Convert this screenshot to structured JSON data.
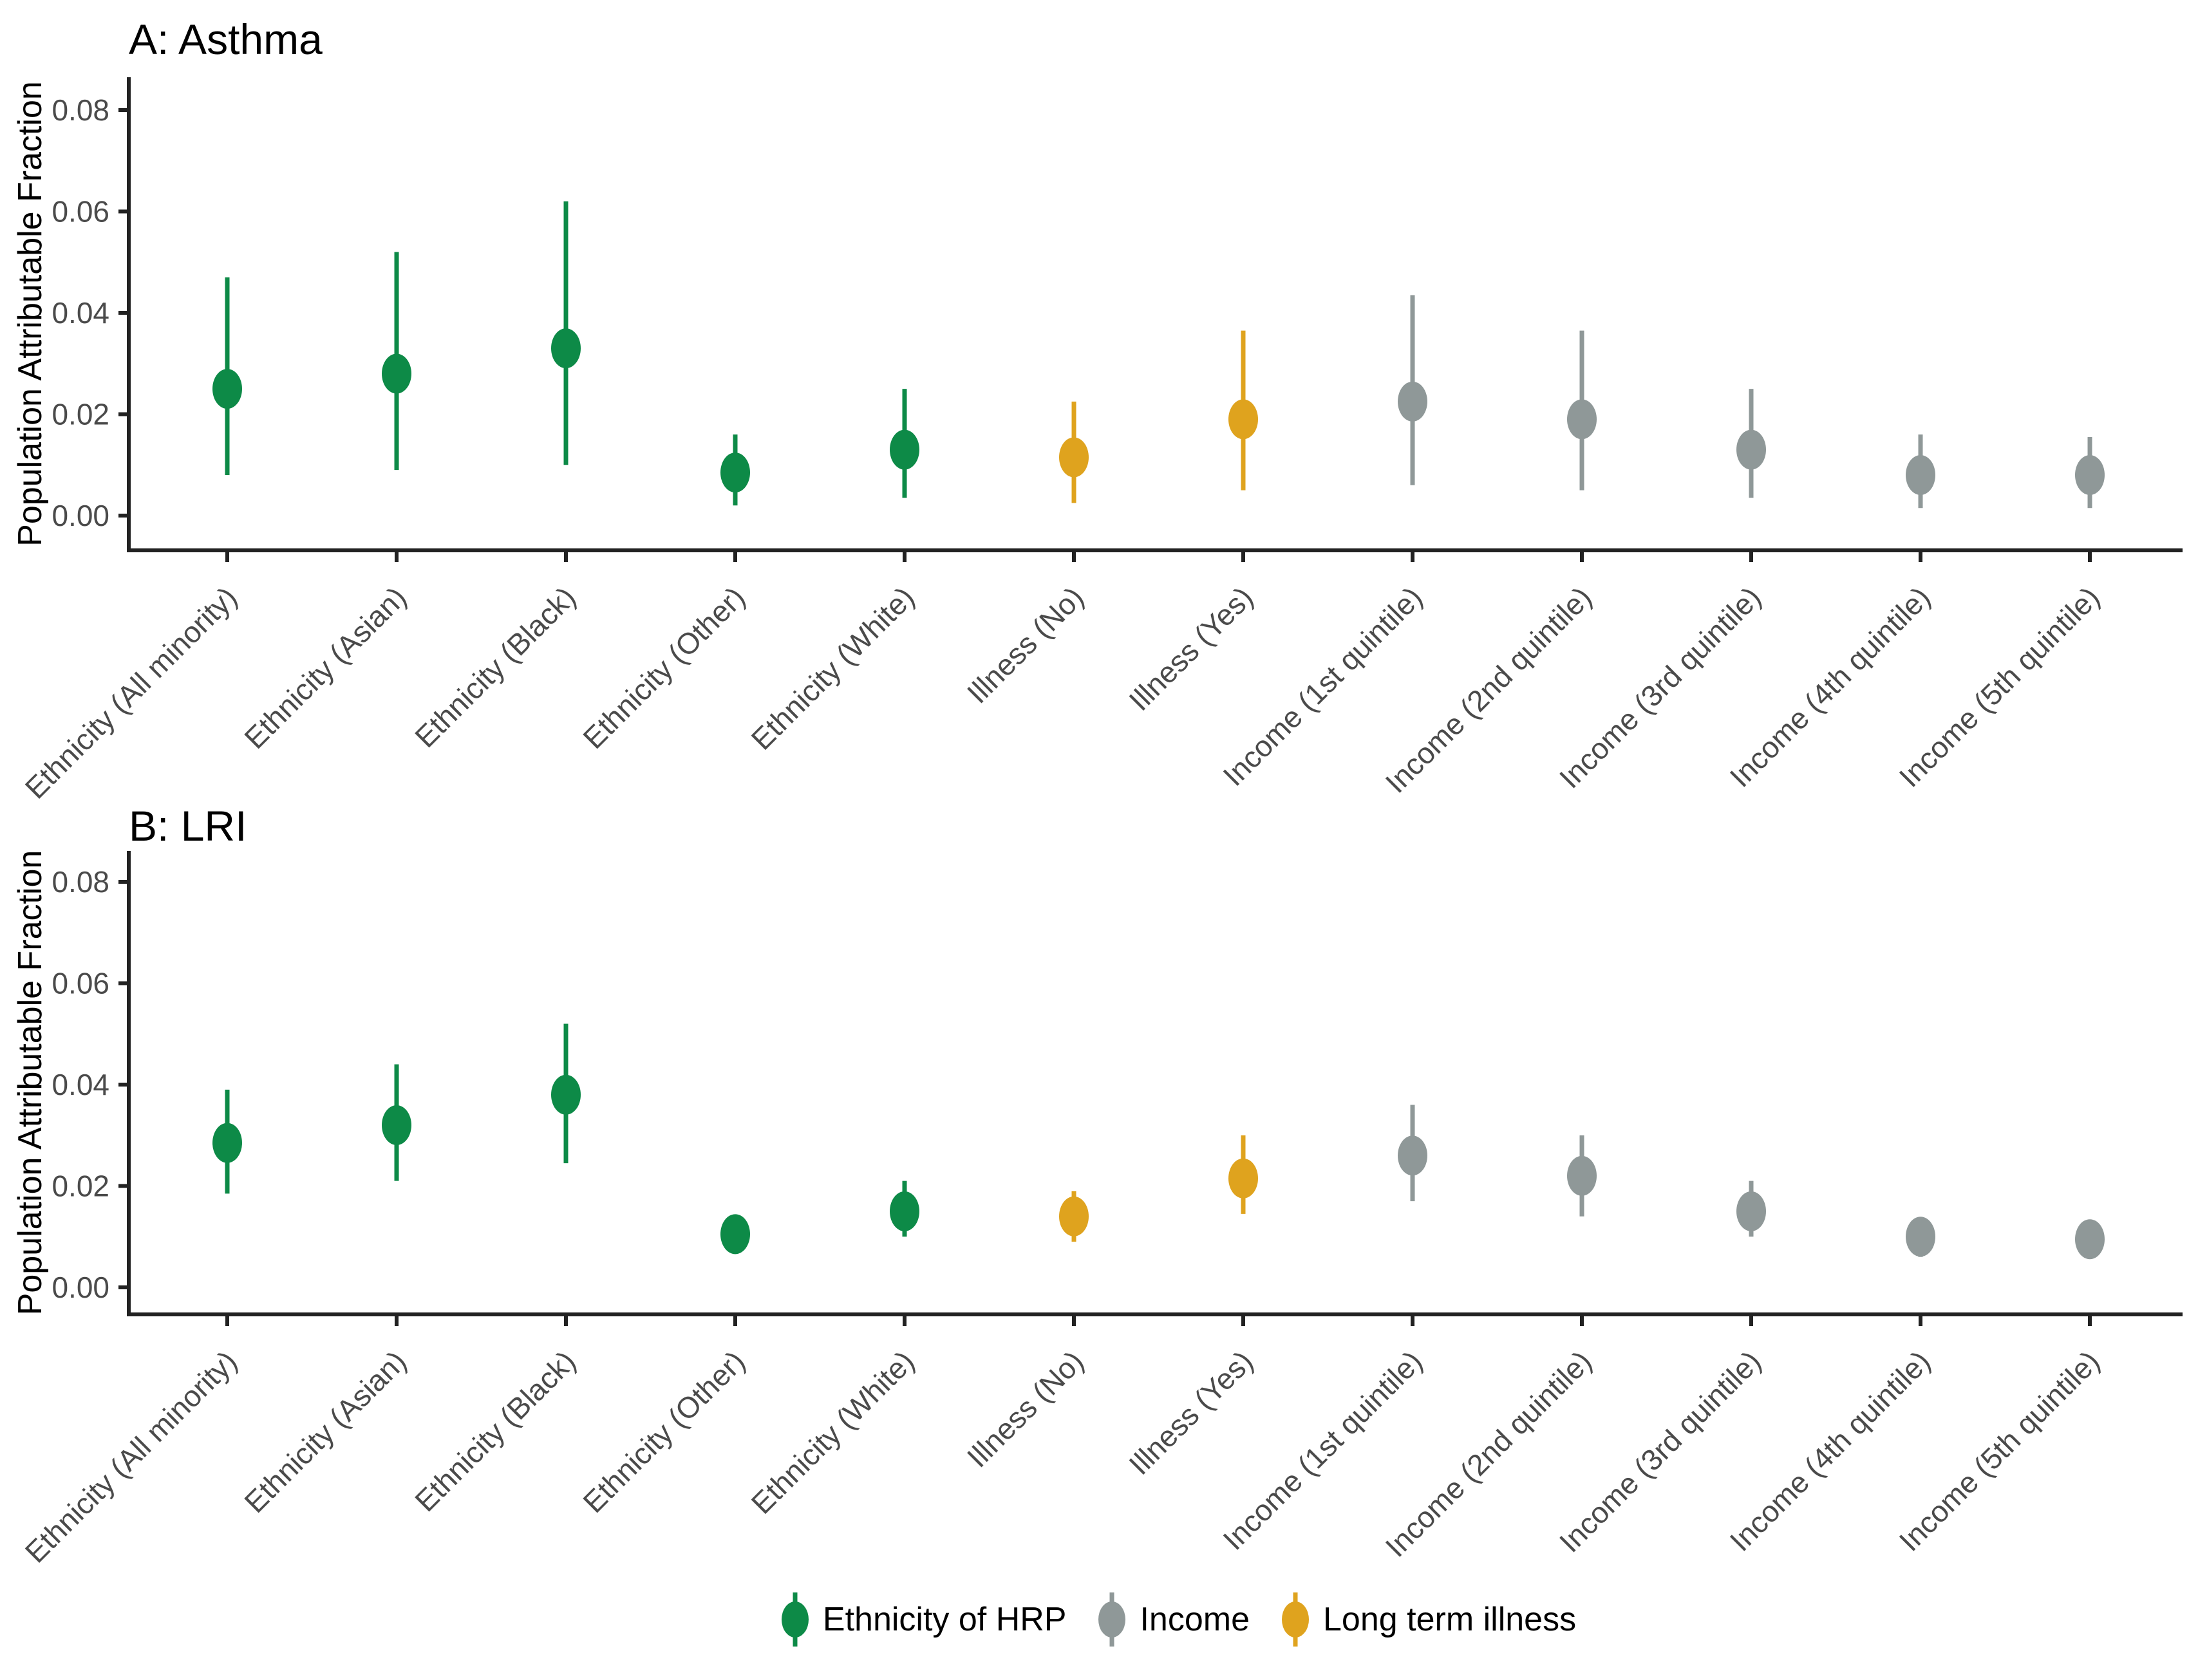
{
  "page": {
    "background": "#ffffff"
  },
  "legend": {
    "items": [
      {
        "label": "Ethnicity of HRP",
        "color": "#0d8a47",
        "group": "ethnicity"
      },
      {
        "label": "Income",
        "color": "#8f9898",
        "group": "income"
      },
      {
        "label": "Long term illness",
        "color": "#dfa31e",
        "group": "illness"
      }
    ]
  },
  "style_colors": {
    "axis": "#222222",
    "tick_text": "#4a4a4a"
  },
  "chart_data": [
    {
      "type": "pointrange",
      "panel": "A",
      "title": "A: Asthma",
      "ylabel": "Population Attributable Fraction",
      "ylim": [
        0,
        0.08
      ],
      "yticks": [
        0,
        0.02,
        0.04,
        0.06,
        0.08
      ],
      "ytick_labels": [
        "0.00",
        "0.02",
        "0.04",
        "0.06",
        "0.08"
      ],
      "grid": "off",
      "legend_position": "bottom",
      "categories": [
        "Ethnicity (All minority)",
        "Ethnicity (Asian)",
        "Ethnicity (Black)",
        "Ethnicity (Other)",
        "Ethnicity (White)",
        "Illness (No)",
        "Illness (Yes)",
        "Income (1st quintile)",
        "Income (2nd quintile)",
        "Income (3rd quintile)",
        "Income (4th quintile)",
        "Income (5th quintile)"
      ],
      "groups": [
        "ethnicity",
        "ethnicity",
        "ethnicity",
        "ethnicity",
        "ethnicity",
        "illness",
        "illness",
        "income",
        "income",
        "income",
        "income",
        "income"
      ],
      "values": [
        0.025,
        0.028,
        0.033,
        0.0085,
        0.013,
        0.0115,
        0.019,
        0.0225,
        0.019,
        0.013,
        0.008,
        0.008
      ],
      "ci_low": [
        0.008,
        0.009,
        0.01,
        0.002,
        0.0035,
        0.0025,
        0.005,
        0.006,
        0.005,
        0.0035,
        0.0015,
        0.0015
      ],
      "ci_high": [
        0.047,
        0.052,
        0.062,
        0.016,
        0.025,
        0.0225,
        0.0365,
        0.0435,
        0.0365,
        0.025,
        0.016,
        0.0155
      ]
    },
    {
      "type": "pointrange",
      "panel": "B",
      "title": "B: LRI",
      "ylabel": "Population Attributable Fraction",
      "ylim": [
        0,
        0.08
      ],
      "yticks": [
        0,
        0.02,
        0.04,
        0.06,
        0.08
      ],
      "ytick_labels": [
        "0.00",
        "0.02",
        "0.04",
        "0.06",
        "0.08"
      ],
      "grid": "off",
      "legend_position": "bottom",
      "categories": [
        "Ethnicity (All minority)",
        "Ethnicity (Asian)",
        "Ethnicity (Black)",
        "Ethnicity (Other)",
        "Ethnicity (White)",
        "Illness (No)",
        "Illness (Yes)",
        "Income (1st quintile)",
        "Income (2nd quintile)",
        "Income (3rd quintile)",
        "Income (4th quintile)",
        "Income (5th quintile)"
      ],
      "groups": [
        "ethnicity",
        "ethnicity",
        "ethnicity",
        "ethnicity",
        "ethnicity",
        "illness",
        "illness",
        "income",
        "income",
        "income",
        "income",
        "income"
      ],
      "values": [
        0.0285,
        0.032,
        0.038,
        0.0105,
        0.015,
        0.014,
        0.0215,
        0.026,
        0.022,
        0.015,
        0.01,
        0.0095
      ],
      "ci_low": [
        0.0185,
        0.021,
        0.0245,
        0.0075,
        0.01,
        0.009,
        0.0145,
        0.017,
        0.014,
        0.01,
        0.006,
        0.006
      ],
      "ci_high": [
        0.039,
        0.044,
        0.052,
        0.0135,
        0.021,
        0.019,
        0.03,
        0.036,
        0.03,
        0.021,
        0.0135,
        0.013
      ]
    }
  ]
}
